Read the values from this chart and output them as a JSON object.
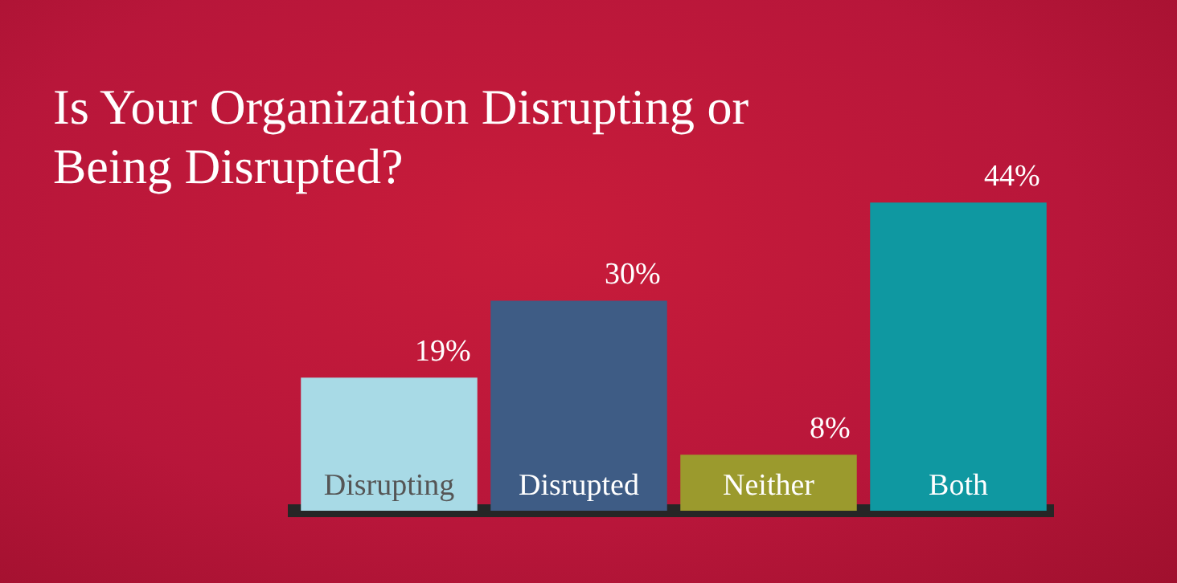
{
  "chart_data": {
    "type": "bar",
    "title": "Is Your Organization Disrupting or Being Disrupted?",
    "categories": [
      "Disrupting",
      "Disrupted",
      "Neither",
      "Both"
    ],
    "values": [
      19,
      30,
      8,
      44
    ],
    "colors": [
      "#a8dae6",
      "#3e5c85",
      "#9b9a2d",
      "#0f98a1"
    ],
    "value_labels": [
      "19%",
      "30%",
      "8%",
      "44%"
    ],
    "grid": false,
    "legend": false
  }
}
